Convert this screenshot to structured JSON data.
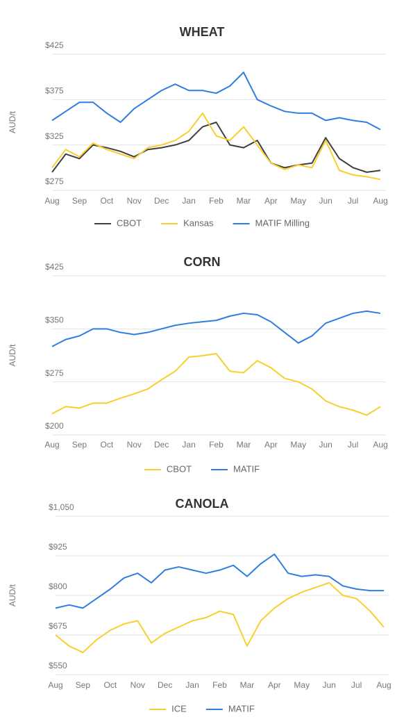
{
  "chart_data": [
    {
      "type": "line",
      "title": "WHEAT",
      "y_label": "AUD/t",
      "categories": [
        "Aug",
        null,
        "Sep",
        null,
        "Oct",
        null,
        "Nov",
        null,
        "Dec",
        null,
        "Jan",
        null,
        "Feb",
        null,
        "Mar",
        null,
        "Apr",
        null,
        "May",
        null,
        "Jun",
        null,
        "Jul",
        null,
        "Aug"
      ],
      "ylim": [
        275,
        425
      ],
      "yticks": [
        {
          "value": 275,
          "label": "$275"
        },
        {
          "value": 325,
          "label": "$325"
        },
        {
          "value": 375,
          "label": "$375"
        },
        {
          "value": 425,
          "label": "$425"
        }
      ],
      "grid": true,
      "series": [
        {
          "name": "CBOT",
          "color": "#3f3f3f",
          "values": [
            295,
            315,
            310,
            325,
            322,
            318,
            312,
            320,
            322,
            325,
            330,
            345,
            350,
            325,
            322,
            330,
            305,
            300,
            303,
            305,
            333,
            310,
            300,
            295,
            297
          ]
        },
        {
          "name": "Kansas",
          "color": "#f7cf2e",
          "values": [
            300,
            320,
            312,
            327,
            320,
            315,
            310,
            322,
            325,
            330,
            340,
            360,
            335,
            330,
            345,
            325,
            305,
            298,
            303,
            300,
            330,
            297,
            292,
            290,
            287
          ]
        },
        {
          "name": "MATIF Milling",
          "color": "#2e7de0",
          "values": [
            352,
            362,
            372,
            372,
            360,
            350,
            365,
            375,
            385,
            392,
            385,
            385,
            382,
            390,
            405,
            375,
            368,
            362,
            360,
            360,
            352,
            355,
            352,
            350,
            342
          ]
        }
      ]
    },
    {
      "type": "line",
      "title": "CORN",
      "y_label": "AUD/t",
      "categories": [
        "Aug",
        null,
        "Sep",
        null,
        "Oct",
        null,
        "Nov",
        null,
        "Dec",
        null,
        "Jan",
        null,
        "Feb",
        null,
        "Mar",
        null,
        "Apr",
        null,
        "May",
        null,
        "Jun",
        null,
        "Jul",
        null,
        "Aug"
      ],
      "ylim": [
        200,
        425
      ],
      "yticks": [
        {
          "value": 200,
          "label": "$200"
        },
        {
          "value": 275,
          "label": "$275"
        },
        {
          "value": 350,
          "label": "$350"
        },
        {
          "value": 425,
          "label": "$425"
        }
      ],
      "grid": true,
      "series": [
        {
          "name": "CBOT",
          "color": "#f7cf2e",
          "values": [
            230,
            240,
            238,
            245,
            245,
            252,
            258,
            265,
            278,
            290,
            310,
            312,
            315,
            290,
            288,
            305,
            295,
            280,
            275,
            265,
            248,
            240,
            235,
            228,
            240
          ]
        },
        {
          "name": "MATIF",
          "color": "#2e7de0",
          "values": [
            325,
            335,
            340,
            350,
            350,
            345,
            342,
            345,
            350,
            355,
            358,
            360,
            362,
            368,
            372,
            370,
            360,
            345,
            330,
            340,
            358,
            365,
            372,
            375,
            372
          ]
        }
      ]
    },
    {
      "type": "line",
      "title": "CANOLA",
      "y_label": "AUD/t",
      "categories": [
        "Aug",
        null,
        "Sep",
        null,
        "Oct",
        null,
        "Nov",
        null,
        "Dec",
        null,
        "Jan",
        null,
        "Feb",
        null,
        "Mar",
        null,
        "Apr",
        null,
        "May",
        null,
        "Jun",
        null,
        "Jul",
        null,
        "Aug"
      ],
      "ylim": [
        550,
        1050
      ],
      "yticks": [
        {
          "value": 550,
          "label": "$550"
        },
        {
          "value": 675,
          "label": "$675"
        },
        {
          "value": 800,
          "label": "$800"
        },
        {
          "value": 925,
          "label": "$925"
        },
        {
          "value": 1050,
          "label": "$1,050"
        }
      ],
      "grid": true,
      "series": [
        {
          "name": "ICE",
          "color": "#f7cf2e",
          "values": [
            675,
            640,
            620,
            660,
            690,
            710,
            720,
            650,
            680,
            700,
            720,
            730,
            750,
            740,
            640,
            720,
            760,
            790,
            810,
            825,
            840,
            800,
            790,
            750,
            700
          ]
        },
        {
          "name": "MATIF",
          "color": "#2e7de0",
          "values": [
            760,
            770,
            760,
            790,
            820,
            855,
            870,
            840,
            880,
            890,
            880,
            870,
            880,
            895,
            860,
            900,
            930,
            870,
            860,
            865,
            860,
            830,
            820,
            815,
            815
          ]
        }
      ]
    }
  ]
}
